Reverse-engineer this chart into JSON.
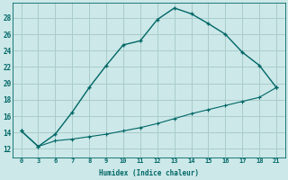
{
  "xlabel": "Humidex (Indice chaleur)",
  "bg_color": "#cce8e8",
  "grid_color": "#aacccc",
  "line_color": "#006666",
  "x_labels": [
    "0",
    "3",
    "6",
    "7",
    "8",
    "9",
    "10",
    "11",
    "12",
    "13",
    "14",
    "15",
    "16",
    "17",
    "18",
    "21"
  ],
  "y_ticks": [
    12,
    14,
    16,
    18,
    20,
    22,
    24,
    26,
    28
  ],
  "ylim": [
    11.0,
    29.8
  ],
  "line1_y": [
    14.2,
    12.3,
    13.8,
    16.5,
    19.5,
    22.2,
    24.7,
    25.2,
    27.8,
    29.2,
    28.5,
    27.3,
    26.0,
    23.8,
    22.2,
    19.5
  ],
  "line2_y": [
    14.2,
    12.3,
    13.0,
    13.2,
    13.5,
    13.8,
    14.2,
    14.6,
    15.1,
    15.7,
    16.3,
    16.8,
    17.3,
    17.8,
    18.3,
    19.5
  ]
}
